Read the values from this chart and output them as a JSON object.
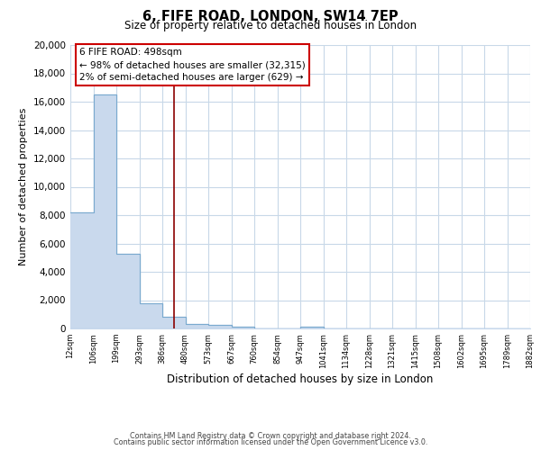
{
  "title": "6, FIFE ROAD, LONDON, SW14 7EP",
  "subtitle": "Size of property relative to detached houses in London",
  "bar_fill_color": "#c9d9ed",
  "bar_edge_color": "#7aaacf",
  "xlabel": "Distribution of detached houses by size in London",
  "ylabel": "Number of detached properties",
  "bin_labels": [
    "12sqm",
    "106sqm",
    "199sqm",
    "293sqm",
    "386sqm",
    "480sqm",
    "573sqm",
    "667sqm",
    "760sqm",
    "854sqm",
    "947sqm",
    "1041sqm",
    "1134sqm",
    "1228sqm",
    "1321sqm",
    "1415sqm",
    "1508sqm",
    "1602sqm",
    "1695sqm",
    "1789sqm",
    "1882sqm"
  ],
  "bar_heights": [
    8200,
    16500,
    5300,
    1800,
    800,
    300,
    230,
    130,
    0,
    0,
    130,
    0,
    0,
    0,
    0,
    0,
    0,
    0,
    0,
    0,
    0
  ],
  "ylim": [
    0,
    20000
  ],
  "yticks": [
    0,
    2000,
    4000,
    6000,
    8000,
    10000,
    12000,
    14000,
    16000,
    18000,
    20000
  ],
  "vline_color": "#8b0000",
  "annotation_title": "6 FIFE ROAD: 498sqm",
  "annotation_line1": "← 98% of detached houses are smaller (32,315)",
  "annotation_line2": "2% of semi-detached houses are larger (629) →",
  "annotation_box_color": "#ffffff",
  "annotation_box_edge": "#cc0000",
  "footer1": "Contains HM Land Registry data © Crown copyright and database right 2024.",
  "footer2": "Contains public sector information licensed under the Open Government Licence v3.0.",
  "background_color": "#ffffff",
  "plot_bg_color": "#ffffff",
  "grid_color": "#c8d8e8"
}
